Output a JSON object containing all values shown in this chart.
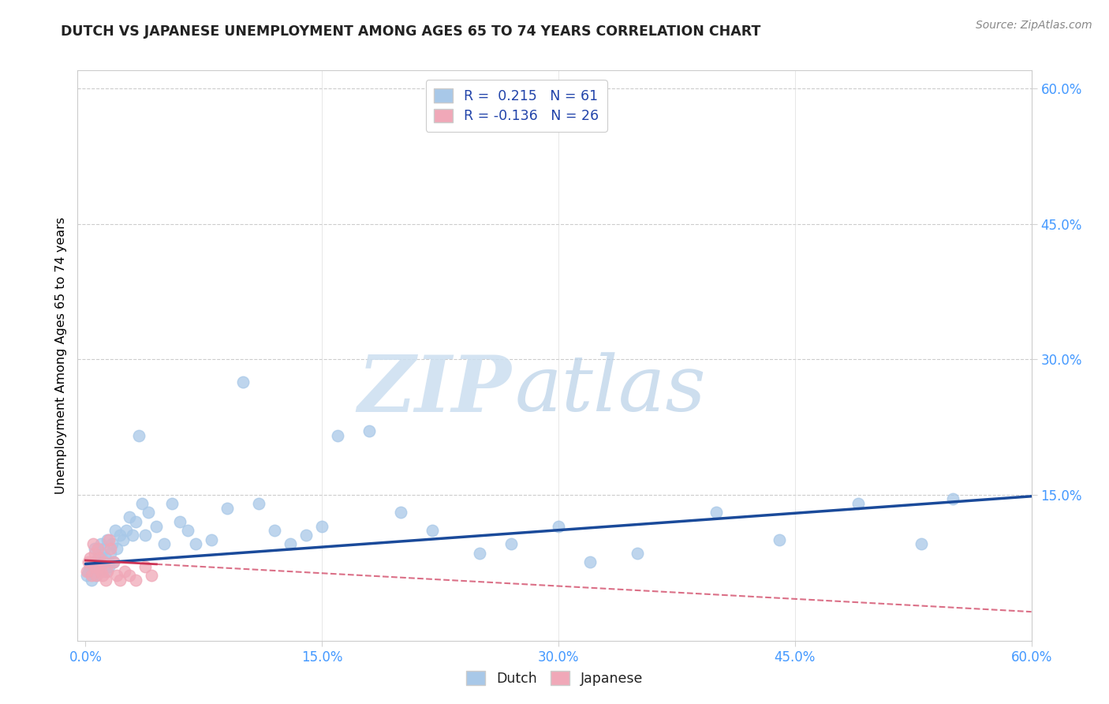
{
  "title": "DUTCH VS JAPANESE UNEMPLOYMENT AMONG AGES 65 TO 74 YEARS CORRELATION CHART",
  "source": "Source: ZipAtlas.com",
  "ylabel": "Unemployment Among Ages 65 to 74 years",
  "xlim": [
    0.0,
    0.6
  ],
  "ylim": [
    0.0,
    0.62
  ],
  "xticks": [
    0.0,
    0.15,
    0.3,
    0.45,
    0.6
  ],
  "yticks": [
    0.15,
    0.3,
    0.45,
    0.6
  ],
  "xtick_labels": [
    "0.0%",
    "15.0%",
    "30.0%",
    "45.0%",
    "60.0%"
  ],
  "ytick_labels": [
    "15.0%",
    "30.0%",
    "45.0%",
    "60.0%"
  ],
  "dutch_R": 0.215,
  "dutch_N": 61,
  "japanese_R": -0.136,
  "japanese_N": 26,
  "dutch_color": "#a8c8e8",
  "dutch_line_color": "#1a4a9a",
  "japanese_color": "#f0a8b8",
  "japanese_line_color": "#cc3355",
  "dutch_x": [
    0.001,
    0.002,
    0.003,
    0.004,
    0.005,
    0.006,
    0.006,
    0.007,
    0.008,
    0.009,
    0.01,
    0.01,
    0.011,
    0.012,
    0.013,
    0.013,
    0.014,
    0.015,
    0.016,
    0.017,
    0.018,
    0.019,
    0.02,
    0.022,
    0.024,
    0.026,
    0.028,
    0.03,
    0.032,
    0.034,
    0.036,
    0.038,
    0.04,
    0.045,
    0.05,
    0.055,
    0.06,
    0.065,
    0.07,
    0.08,
    0.09,
    0.1,
    0.11,
    0.12,
    0.13,
    0.14,
    0.15,
    0.16,
    0.18,
    0.2,
    0.22,
    0.25,
    0.27,
    0.3,
    0.32,
    0.35,
    0.4,
    0.44,
    0.49,
    0.53,
    0.55
  ],
  "dutch_y": [
    0.06,
    0.065,
    0.07,
    0.055,
    0.068,
    0.075,
    0.09,
    0.06,
    0.08,
    0.07,
    0.085,
    0.095,
    0.075,
    0.09,
    0.065,
    0.08,
    0.1,
    0.07,
    0.085,
    0.095,
    0.075,
    0.11,
    0.09,
    0.105,
    0.1,
    0.11,
    0.125,
    0.105,
    0.12,
    0.215,
    0.14,
    0.105,
    0.13,
    0.115,
    0.095,
    0.14,
    0.12,
    0.11,
    0.095,
    0.1,
    0.135,
    0.275,
    0.14,
    0.11,
    0.095,
    0.105,
    0.115,
    0.215,
    0.22,
    0.13,
    0.11,
    0.085,
    0.095,
    0.115,
    0.075,
    0.085,
    0.13,
    0.1,
    0.14,
    0.095,
    0.145
  ],
  "japanese_x": [
    0.001,
    0.002,
    0.003,
    0.004,
    0.005,
    0.006,
    0.006,
    0.007,
    0.008,
    0.008,
    0.009,
    0.01,
    0.011,
    0.012,
    0.013,
    0.014,
    0.015,
    0.016,
    0.018,
    0.02,
    0.022,
    0.025,
    0.028,
    0.032,
    0.038,
    0.042
  ],
  "japanese_y": [
    0.065,
    0.075,
    0.08,
    0.06,
    0.095,
    0.07,
    0.085,
    0.06,
    0.07,
    0.09,
    0.08,
    0.065,
    0.06,
    0.075,
    0.055,
    0.065,
    0.1,
    0.09,
    0.075,
    0.06,
    0.055,
    0.065,
    0.06,
    0.055,
    0.07,
    0.06
  ],
  "dutch_line_x0": 0.0,
  "dutch_line_x1": 0.6,
  "dutch_line_y0": 0.073,
  "dutch_line_y1": 0.148,
  "japanese_line_x0": 0.0,
  "japanese_line_x1": 0.6,
  "japanese_line_y0": 0.077,
  "japanese_line_y1": 0.02,
  "grid_yticks": [
    0.15,
    0.3,
    0.45,
    0.6
  ],
  "grid_xticks": [
    0.15,
    0.3,
    0.45
  ],
  "background_color": "#ffffff",
  "title_color": "#222222",
  "tick_color": "#4499ff",
  "source_color": "#888888"
}
